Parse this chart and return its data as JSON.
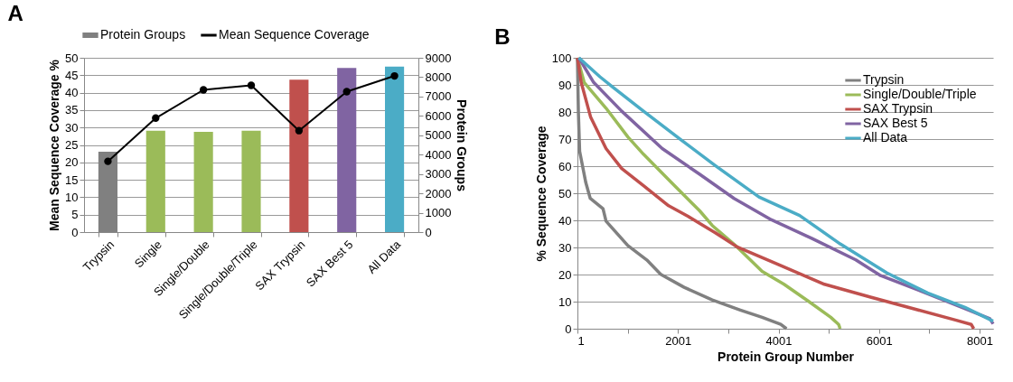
{
  "chart_data": [
    {
      "type": "bar",
      "title": "A",
      "categories": [
        "Trypsin",
        "Single",
        "Single/Double",
        "Single/Double/Triple",
        "SAX Trypsin",
        "SAX Best 5",
        "All Data"
      ],
      "ylabel": "Mean Sequence Coverage %",
      "y2label": "Protein Groups",
      "ylim": [
        0,
        50
      ],
      "yticks": [
        0,
        5,
        10,
        15,
        20,
        25,
        30,
        35,
        40,
        45,
        50
      ],
      "y2lim": [
        0,
        9000
      ],
      "y2ticks": [
        0,
        1000,
        2000,
        3000,
        4000,
        5000,
        6000,
        7000,
        8000,
        9000
      ],
      "grid": "y",
      "legend": "top",
      "marker": "circle",
      "series": [
        {
          "name": "Protein Groups",
          "type": "bar",
          "axis": "y2",
          "color": "#808080",
          "colors": [
            "#808080",
            "#9bbb59",
            "#9bbb59",
            "#9bbb59",
            "#c0504d",
            "#8064a2",
            "#4bacc6"
          ],
          "values": [
            4150,
            5230,
            5180,
            5230,
            7870,
            8470,
            8540
          ]
        },
        {
          "name": "Mean Sequence Coverage",
          "type": "line",
          "color": "#000000",
          "values": [
            20.3,
            32.7,
            40.8,
            42.1,
            29.1,
            40.3,
            44.8
          ]
        }
      ]
    },
    {
      "type": "line",
      "title": "B",
      "xlabel": "Protein Group Number",
      "ylabel": "% Sequence Coverage",
      "xlim": [
        1,
        8270
      ],
      "xticks": [
        1,
        {
          "value": 1001,
          "label": null
        },
        2001,
        {
          "value": 3001,
          "label": null
        },
        4001,
        {
          "value": 5001,
          "label": null
        },
        6001,
        {
          "value": 7001,
          "label": null
        },
        8001
      ],
      "ylim": [
        0,
        100
      ],
      "yticks": [
        0,
        10,
        20,
        30,
        40,
        50,
        60,
        70,
        80,
        90,
        100
      ],
      "grid": "y",
      "legend": "top right",
      "line_style": "solid",
      "series": [
        {
          "name": "Trypsin",
          "color": "#808080",
          "x": [
            1,
            20,
            45,
            168,
            256,
            510,
            570,
            1003,
            1380,
            1657,
            2123,
            2683,
            3241,
            3675,
            4045,
            4160
          ],
          "values": [
            100,
            80,
            65.5,
            53.9,
            48.1,
            44.3,
            39.7,
            30.7,
            25.4,
            20.1,
            15.3,
            10.6,
            6.9,
            4.2,
            1.6,
            0
          ]
        },
        {
          "name": "Single/Double/Triple",
          "color": "#9bbb59",
          "x": [
            1,
            135,
            570,
            1004,
            1316,
            1873,
            2186,
            2434,
            2683,
            3176,
            3675,
            4110,
            4607,
            5041,
            5196,
            5227
          ],
          "values": [
            100,
            90.9,
            81.4,
            70.8,
            64.4,
            53.9,
            48.1,
            43.5,
            38.1,
            30.2,
            21.2,
            16.4,
            10.0,
            4.2,
            1.6,
            0
          ]
        },
        {
          "name": "SAX Trypsin",
          "color": "#c0504d",
          "x": [
            1,
            76,
            262,
            570,
            882,
            1316,
            1814,
            2200,
            2743,
            3176,
            3986,
            4914,
            5847,
            6779,
            7521,
            7834,
            7884
          ],
          "values": [
            100,
            90.9,
            78.2,
            66.5,
            59.1,
            52.8,
            45.4,
            41.5,
            35.4,
            30.2,
            23.8,
            16.4,
            11.6,
            6.9,
            3.2,
            1.6,
            0
          ]
        },
        {
          "name": "SAX Best 5",
          "color": "#8064a2",
          "x": [
            30,
            324,
            882,
            1688,
            2434,
            3117,
            3861,
            4669,
            5538,
            6033,
            6779,
            7648,
            8205,
            8270
          ],
          "values": [
            100,
            90.9,
            80.3,
            66.5,
            57.0,
            48.1,
            40.2,
            33.3,
            25.4,
            19.6,
            14.3,
            7.9,
            3.7,
            1.8
          ]
        },
        {
          "name": "All Data",
          "color": "#4bacc6",
          "x": [
            30,
            448,
            696,
            1316,
            2062,
            2743,
            3612,
            4421,
            5227,
            6158,
            6965,
            7710,
            8270
          ],
          "values": [
            100,
            93.0,
            89.3,
            80.3,
            69.7,
            60.2,
            48.6,
            41.8,
            31.3,
            20.6,
            13.2,
            7.9,
            2.8
          ]
        }
      ]
    }
  ]
}
